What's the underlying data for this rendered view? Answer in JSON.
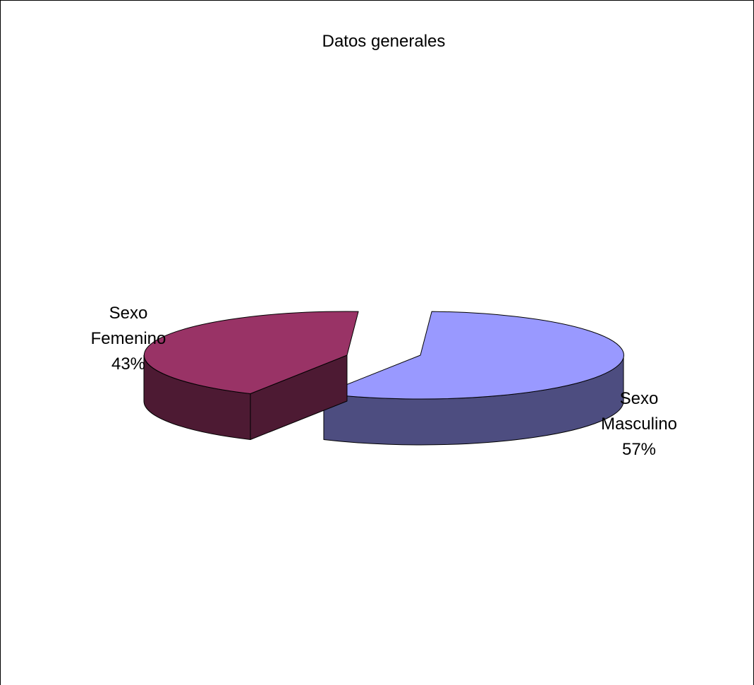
{
  "chart_data": {
    "type": "pie",
    "title": "Datos generales",
    "style": "3d-exploded",
    "slices": [
      {
        "label_lines": [
          "Sexo",
          "Masculino",
          "57%"
        ],
        "value": 57,
        "top_color": "#9999ff",
        "side_color": "#4d4d80"
      },
      {
        "label_lines": [
          "Sexo",
          "Femenino",
          "43%"
        ],
        "value": 43,
        "top_color": "#993366",
        "side_color": "#4d1a33"
      }
    ]
  }
}
